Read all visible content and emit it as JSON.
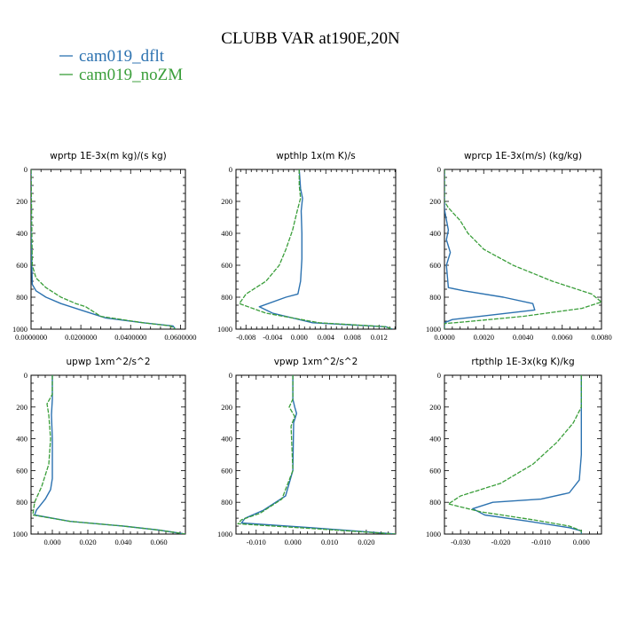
{
  "title": "CLUBB VAR at190E,20N",
  "legend": [
    {
      "label": "cam019_dflt",
      "color": "#2c72b0"
    },
    {
      "label": "cam019_noZM",
      "color": "#3a9e3a"
    }
  ],
  "chart_data": [
    {
      "type": "line",
      "title": "wprtp  1E-3x(m kg)/(s kg)",
      "xlim": [
        0,
        0.062
      ],
      "ylim": [
        1000,
        0
      ],
      "xticks": [
        0,
        0.02,
        0.04,
        0.06
      ],
      "xtick_labels": [
        "0.0000000",
        "0.0200000",
        "0.0400000",
        "0.0600000"
      ],
      "yticks": [
        0,
        200,
        400,
        600,
        800,
        1000
      ],
      "ytick_labels": [
        "0",
        "200",
        "400",
        "600",
        "800",
        "1000"
      ],
      "series": [
        {
          "name": "cam019_dflt",
          "x": [
            0,
            0,
            0.0005,
            0.002,
            0.006,
            0.012,
            0.02,
            0.03,
            0.045,
            0.057,
            0.058
          ],
          "y": [
            0,
            400,
            720,
            760,
            800,
            840,
            880,
            930,
            960,
            980,
            1000
          ]
        },
        {
          "name": "cam019_noZM",
          "x": [
            0,
            0.0005,
            0.002,
            0.006,
            0.012,
            0.018,
            0.022,
            0.028,
            0.045,
            0.056,
            0.058
          ],
          "y": [
            0,
            600,
            680,
            740,
            800,
            840,
            860,
            920,
            960,
            980,
            1000
          ]
        }
      ]
    },
    {
      "type": "line",
      "title": "wpthlp  1x(m K)/s",
      "xlim": [
        -0.0095,
        0.0145
      ],
      "ylim": [
        1000,
        0
      ],
      "xticks": [
        -0.008,
        -0.004,
        0,
        0.004,
        0.008,
        0.012
      ],
      "xtick_labels": [
        "-0.008",
        "-0.004",
        "0.000",
        "0.004",
        "0.008",
        "0.012"
      ],
      "yticks": [
        0,
        200,
        400,
        600,
        800,
        1000
      ],
      "ytick_labels": [
        "0",
        "200",
        "400",
        "600",
        "800",
        "1000"
      ],
      "series": [
        {
          "name": "cam019_dflt",
          "x": [
            0,
            0.0002,
            0.0005,
            0.0003,
            0.0004,
            0.0004,
            0.0002,
            -0.0002,
            -0.002,
            -0.006,
            -0.004,
            0.002,
            0.013,
            0.014
          ],
          "y": [
            0,
            120,
            180,
            260,
            400,
            560,
            700,
            780,
            800,
            860,
            900,
            960,
            985,
            1000
          ]
        },
        {
          "name": "cam019_noZM",
          "x": [
            0,
            0,
            0.0002,
            -0.0003,
            -0.001,
            -0.002,
            -0.003,
            -0.005,
            -0.008,
            -0.009,
            -0.005,
            0.003,
            0.013,
            0.014
          ],
          "y": [
            0,
            100,
            180,
            260,
            380,
            500,
            600,
            700,
            780,
            840,
            900,
            960,
            985,
            1000
          ]
        }
      ]
    },
    {
      "type": "line",
      "title": "wprcp  1E-3x(m/s) (kg/kg)",
      "xlim": [
        0,
        0.008
      ],
      "ylim": [
        1000,
        0
      ],
      "xticks": [
        0,
        0.002,
        0.004,
        0.006,
        0.008
      ],
      "xtick_labels": [
        "0.0000",
        "0.0020",
        "0.0040",
        "0.0060",
        "0.0080"
      ],
      "yticks": [
        0,
        200,
        400,
        600,
        800,
        1000
      ],
      "ytick_labels": [
        "0",
        "200",
        "400",
        "600",
        "800",
        "1000"
      ],
      "series": [
        {
          "name": "cam019_dflt",
          "x": [
            0,
            0,
            0.0002,
            0.0001,
            0.0003,
            0.0001,
            0.0002,
            0.001,
            0.003,
            0.0045,
            0.0046,
            0.0004,
            0,
            0
          ],
          "y": [
            0,
            250,
            380,
            440,
            520,
            600,
            740,
            760,
            800,
            840,
            880,
            940,
            960,
            1000
          ]
        },
        {
          "name": "cam019_noZM",
          "x": [
            0,
            0,
            0.0002,
            0.0008,
            0.0012,
            0.002,
            0.0035,
            0.0055,
            0.0075,
            0.008,
            0.007,
            0.004,
            0.001,
            0,
            0
          ],
          "y": [
            0,
            200,
            240,
            320,
            400,
            500,
            600,
            700,
            780,
            830,
            870,
            920,
            955,
            965,
            1000
          ]
        }
      ]
    },
    {
      "type": "line",
      "title": "upwp  1xm^2/s^2",
      "xlim": [
        -0.012,
        0.075
      ],
      "ylim": [
        1000,
        0
      ],
      "xticks": [
        0,
        0.02,
        0.04,
        0.06
      ],
      "xtick_labels": [
        "0.000",
        "0.020",
        "0.040",
        "0.060"
      ],
      "yticks": [
        0,
        200,
        400,
        600,
        800,
        1000
      ],
      "ytick_labels": [
        "0",
        "200",
        "400",
        "600",
        "800",
        "1000"
      ],
      "series": [
        {
          "name": "cam019_dflt",
          "x": [
            0,
            0,
            -0.0005,
            0,
            0,
            -0.001,
            -0.004,
            -0.009,
            -0.01,
            0.01,
            0.04,
            0.06,
            0.075
          ],
          "y": [
            0,
            150,
            250,
            400,
            650,
            720,
            780,
            850,
            880,
            920,
            950,
            975,
            1000
          ]
        },
        {
          "name": "cam019_noZM",
          "x": [
            0,
            0,
            -0.003,
            -0.002,
            -0.001,
            -0.002,
            -0.006,
            -0.01,
            -0.011,
            0.01,
            0.04,
            0.06,
            0.075
          ],
          "y": [
            0,
            120,
            180,
            250,
            400,
            560,
            700,
            800,
            880,
            920,
            950,
            975,
            1000
          ]
        }
      ]
    },
    {
      "type": "line",
      "title": "vpwp  1xm^2/s^2",
      "xlim": [
        -0.0155,
        0.028
      ],
      "ylim": [
        1000,
        0
      ],
      "xticks": [
        -0.01,
        0,
        0.01,
        0.02
      ],
      "xtick_labels": [
        "-0.010",
        "0.000",
        "0.010",
        "0.020"
      ],
      "yticks": [
        0,
        200,
        400,
        600,
        800,
        1000
      ],
      "ytick_labels": [
        "0",
        "200",
        "400",
        "600",
        "800",
        "1000"
      ],
      "series": [
        {
          "name": "cam019_dflt",
          "x": [
            0,
            0,
            0.0005,
            0.001,
            0.0002,
            0,
            -0.002,
            -0.008,
            -0.013,
            -0.014,
            0.005,
            0.028
          ],
          "y": [
            0,
            150,
            200,
            240,
            300,
            600,
            760,
            850,
            900,
            930,
            960,
            1000
          ]
        },
        {
          "name": "cam019_noZM",
          "x": [
            0,
            0,
            -0.001,
            0.0005,
            -0.0005,
            0,
            -0.003,
            -0.009,
            -0.014,
            -0.015,
            0.005,
            0.028
          ],
          "y": [
            0,
            150,
            200,
            260,
            320,
            600,
            780,
            870,
            910,
            935,
            965,
            1000
          ]
        }
      ]
    },
    {
      "type": "line",
      "title": "rtpthlp  1E-3x(kg K)/kg",
      "xlim": [
        -0.034,
        0.005
      ],
      "ylim": [
        1000,
        0
      ],
      "xticks": [
        -0.03,
        -0.02,
        -0.01,
        0
      ],
      "xtick_labels": [
        "-0.030",
        "-0.020",
        "-0.010",
        "0.000"
      ],
      "yticks": [
        0,
        200,
        400,
        600,
        800,
        1000
      ],
      "ytick_labels": [
        "0",
        "200",
        "400",
        "600",
        "800",
        "1000"
      ],
      "series": [
        {
          "name": "cam019_dflt",
          "x": [
            0,
            0,
            0,
            -0.0005,
            -0.003,
            -0.01,
            -0.022,
            -0.027,
            -0.024,
            -0.013,
            -0.003,
            0,
            0
          ],
          "y": [
            0,
            200,
            500,
            660,
            740,
            780,
            800,
            840,
            880,
            920,
            960,
            980,
            1000
          ]
        },
        {
          "name": "cam019_noZM",
          "x": [
            0,
            0,
            -0.002,
            -0.006,
            -0.012,
            -0.02,
            -0.03,
            -0.033,
            -0.025,
            -0.012,
            -0.003,
            0,
            0
          ],
          "y": [
            0,
            200,
            300,
            420,
            560,
            680,
            760,
            810,
            860,
            910,
            950,
            980,
            1000
          ]
        }
      ]
    }
  ]
}
